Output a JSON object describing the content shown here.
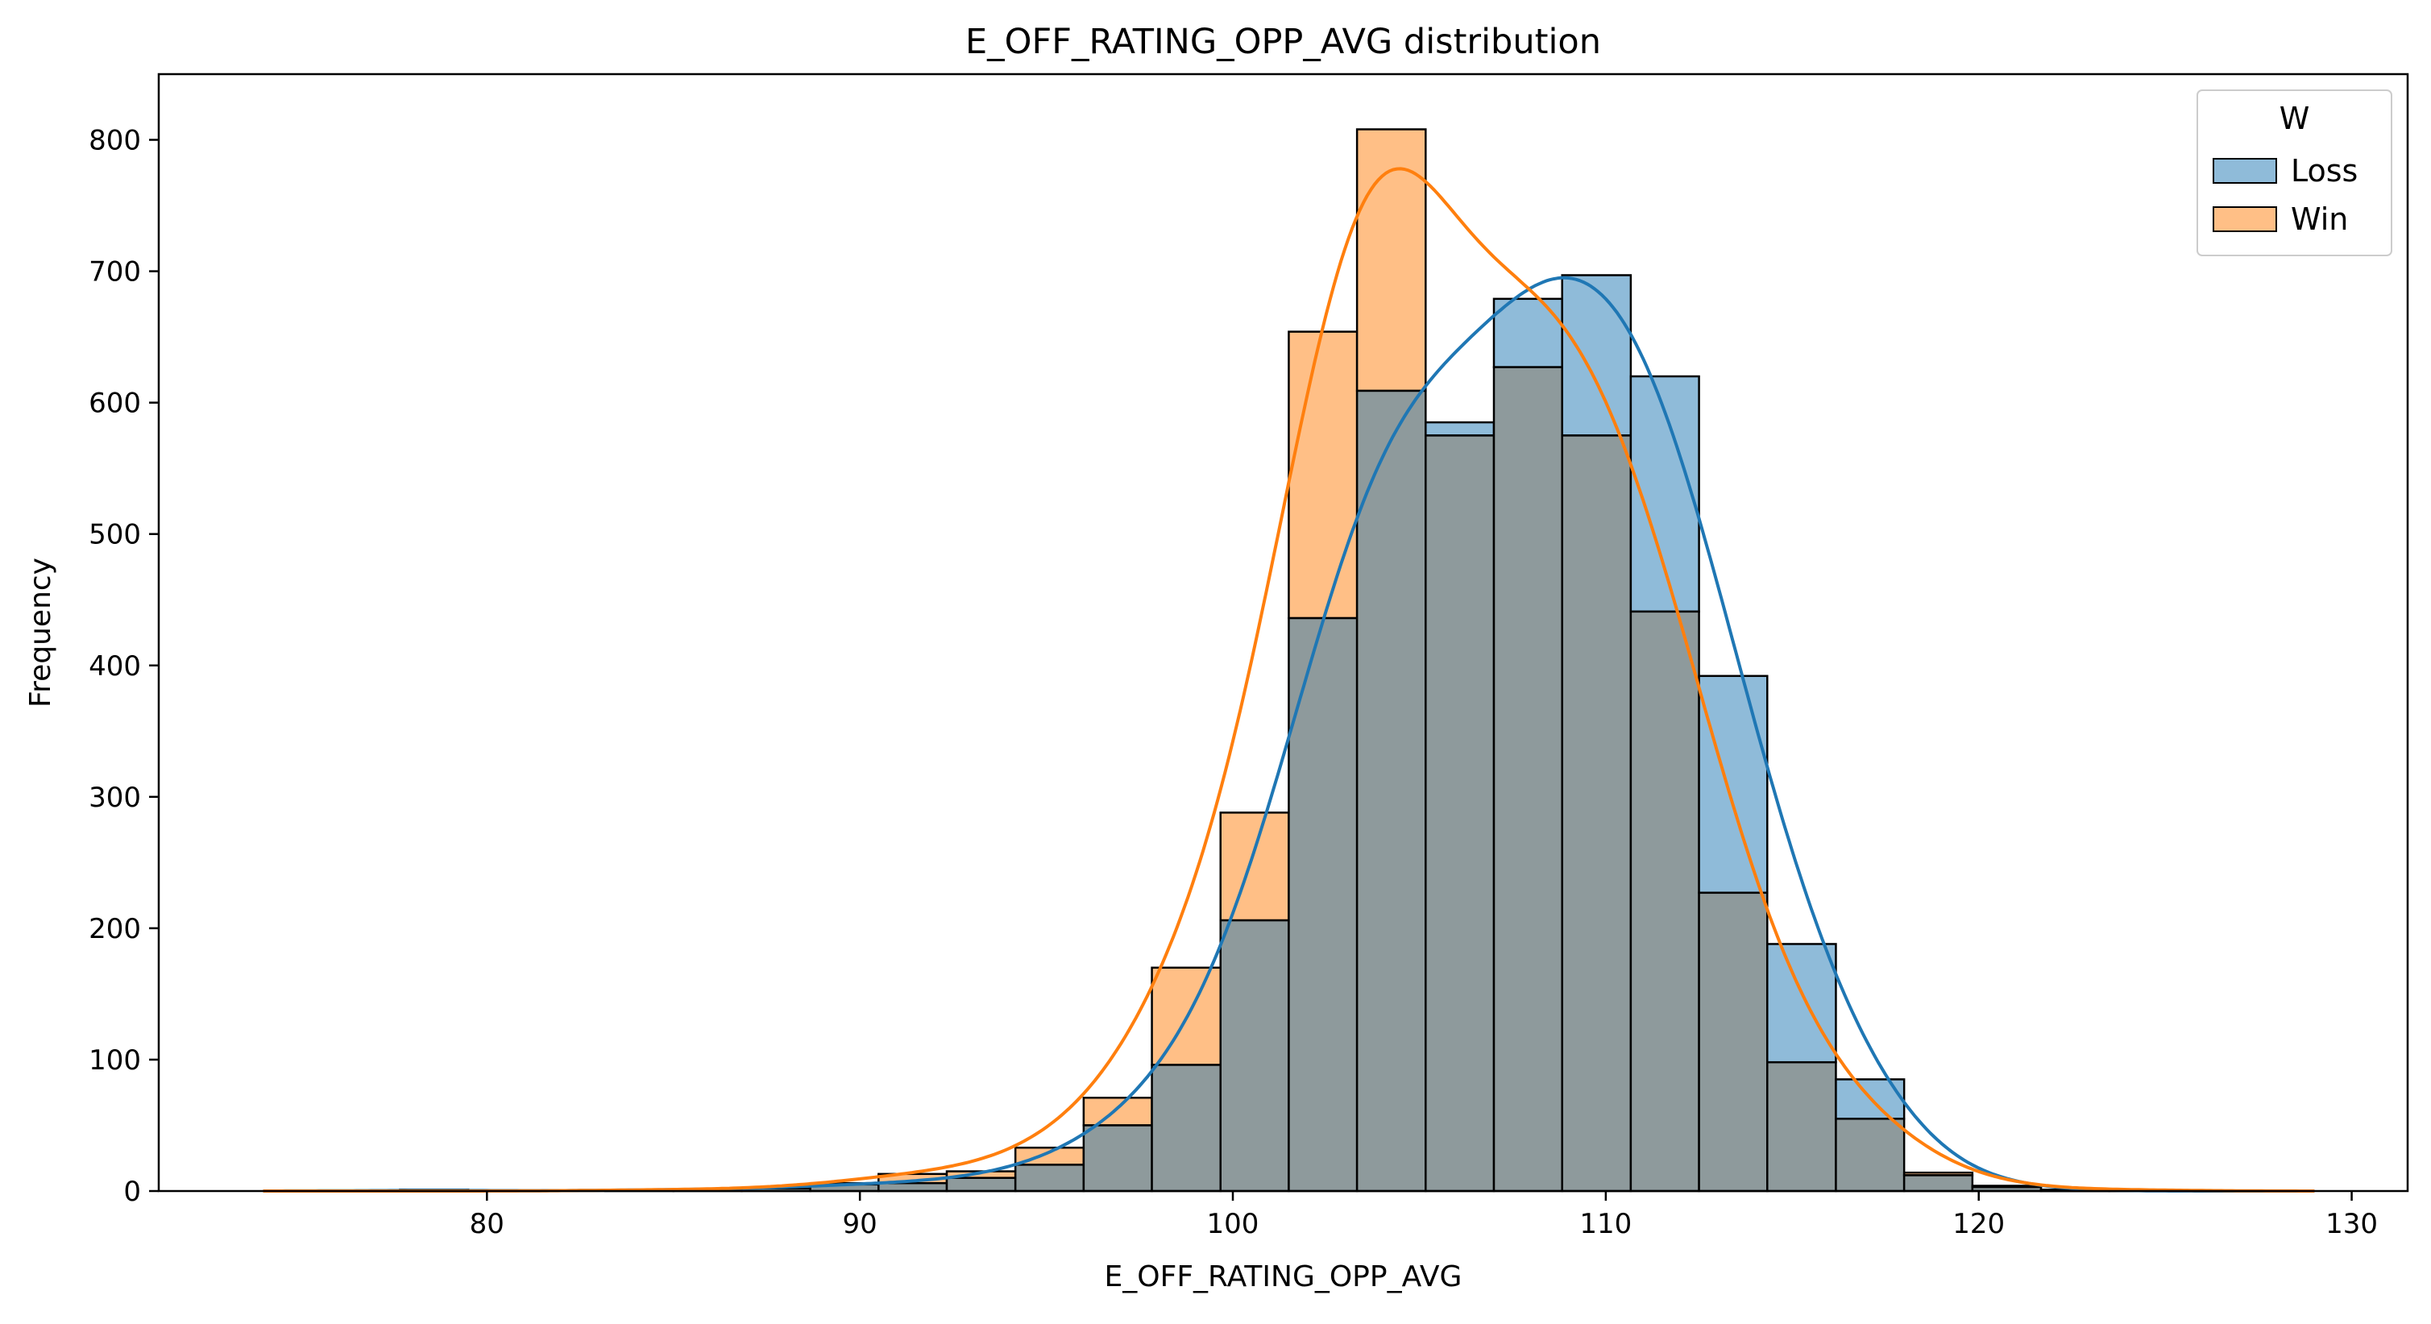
{
  "chart_data": {
    "type": "bar",
    "subtype": "overlapping histogram with KDE curves",
    "title": "E_OFF_RATING_OPP_AVG distribution",
    "xlabel": "E_OFF_RATING_OPP_AVG",
    "ylabel": "Frequency",
    "xlim": [
      71.2,
      131.5
    ],
    "ylim": [
      0,
      850
    ],
    "x_ticks": [
      80,
      90,
      100,
      110,
      120,
      130
    ],
    "y_ticks": [
      0,
      100,
      200,
      300,
      400,
      500,
      600,
      700,
      800
    ],
    "grid": false,
    "legend": {
      "title": "W",
      "position": "top-right",
      "entries": [
        "Loss",
        "Win"
      ]
    },
    "bin_edges": [
      74.0,
      75.83,
      77.67,
      79.5,
      81.33,
      83.17,
      85.0,
      86.83,
      88.67,
      90.5,
      92.33,
      94.17,
      96.0,
      97.83,
      99.67,
      101.5,
      103.33,
      105.17,
      107.0,
      108.83,
      110.67,
      112.5,
      114.33,
      116.17,
      118.0,
      119.83,
      121.67,
      123.5,
      125.33,
      127.17,
      129.0
    ],
    "series": [
      {
        "name": "Loss",
        "color": "#1f77b4",
        "counts": [
          0,
          0,
          1,
          0,
          0,
          1,
          1,
          2,
          5,
          6,
          10,
          20,
          50,
          96,
          206,
          436,
          609,
          585,
          679,
          697,
          620,
          392,
          188,
          85,
          12,
          4,
          0,
          0,
          0,
          0
        ],
        "kde_peak_x": 109.0,
        "kde_peak_y": 695
      },
      {
        "name": "Win",
        "color": "#ff7f0e",
        "counts": [
          0,
          0,
          0,
          0,
          0,
          1,
          1,
          2,
          6,
          13,
          15,
          33,
          71,
          170,
          288,
          654,
          808,
          575,
          627,
          575,
          441,
          227,
          98,
          55,
          14,
          3,
          1,
          1,
          0,
          0
        ],
        "kde_peak_x": 103.6,
        "kde_peak_y": 778
      }
    ],
    "overlap_color": "#8e9a9c"
  }
}
